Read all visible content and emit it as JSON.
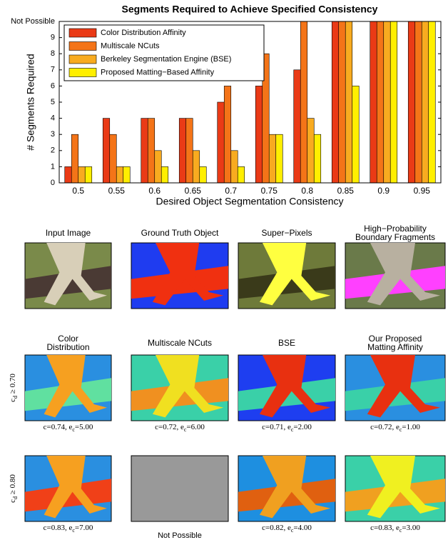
{
  "chart_data": {
    "type": "bar",
    "title": "Segments Required to Achieve Specified Consistency",
    "x_label": "Desired Object Segmentation Consistency",
    "y_label": "# Segments Required",
    "categories": [
      "0.5",
      "0.55",
      "0.6",
      "0.65",
      "0.7",
      "0.75",
      "0.8",
      "0.85",
      "0.9",
      "0.95"
    ],
    "series": [
      {
        "name": "Color Distribution Affinity",
        "color": "#ea3a16",
        "values": [
          1,
          4,
          4,
          4,
          5,
          6,
          7,
          10,
          10,
          10
        ]
      },
      {
        "name": "Multiscale NCuts",
        "color": "#f47418",
        "values": [
          3,
          3,
          4,
          4,
          6,
          8,
          10,
          10,
          10,
          10
        ]
      },
      {
        "name": "Berkeley Segmentation Engine (BSE)",
        "color": "#f8ab20",
        "values": [
          1,
          1,
          2,
          2,
          2,
          3,
          4,
          10,
          10,
          10
        ]
      },
      {
        "name": "Proposed Matting−Based Affinity",
        "color": "#ffef00",
        "values": [
          1,
          1,
          1,
          1,
          1,
          3,
          3,
          6,
          10,
          10
        ]
      }
    ],
    "ylim": [
      0,
      10
    ],
    "yticks": [
      0,
      1,
      2,
      3,
      4,
      5,
      6,
      7,
      8,
      9,
      {
        "value": 10,
        "label": "Not Possible"
      }
    ],
    "legend": "upper-left",
    "grid": false
  },
  "figure": {
    "top_titles": [
      [
        "Input Image"
      ],
      [
        "Ground Truth Object"
      ],
      [
        "Super−Pixels"
      ],
      [
        "High−Probability",
        "Boundary Fragments"
      ]
    ],
    "method_titles": [
      [
        "Color",
        "Distribution"
      ],
      [
        "Multiscale NCuts"
      ],
      [
        "BSE"
      ],
      [
        "Our Proposed",
        "Matting Affinity"
      ]
    ],
    "rows": [
      {
        "label": {
          "main": "c",
          "sub": "d",
          "tail": " ≥ 0.70"
        },
        "captions": [
          {
            "main": "c=0.74, e",
            "sub": "c",
            "tail": "=5.00"
          },
          {
            "main": "c=0.72, e",
            "sub": "c",
            "tail": "=6.00"
          },
          {
            "main": "c=0.71, e",
            "sub": "c",
            "tail": "=2.00"
          },
          {
            "main": "c=0.72, e",
            "sub": "c",
            "tail": "=1.00"
          }
        ]
      },
      {
        "label": {
          "main": "c",
          "sub": "d",
          "tail": " ≥ 0.80"
        },
        "captions": [
          {
            "main": "c=0.83, e",
            "sub": "c",
            "tail": "=7.00"
          },
          {
            "main": "Not Possible"
          },
          {
            "main": "c=0.82, e",
            "sub": "c",
            "tail": "=4.00"
          },
          {
            "main": "c=0.83, e",
            "sub": "c",
            "tail": "=3.00"
          }
        ]
      }
    ]
  }
}
